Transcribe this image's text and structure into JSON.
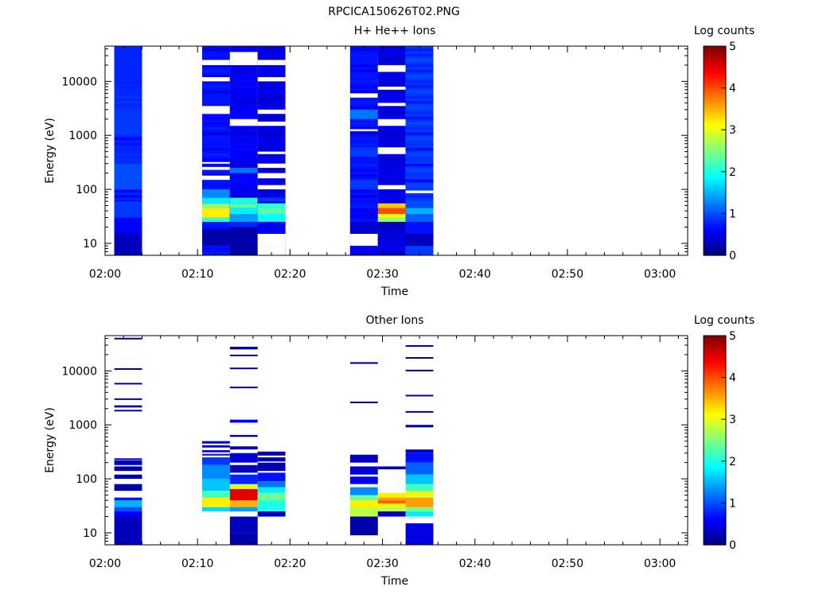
{
  "figure_title": "RPCICA150626T02.PNG",
  "colorbar": {
    "label": "Log counts",
    "ticks": [
      "0",
      "1",
      "2",
      "3",
      "4",
      "5"
    ],
    "range": [
      0,
      5
    ]
  },
  "chart_data": [
    {
      "type": "heatmap",
      "title": "H+ He++ Ions",
      "xlabel": "Time",
      "ylabel": "Energy (eV)",
      "y_scale": "log",
      "ylim": [
        6,
        45000
      ],
      "xlim": [
        "02:00",
        "03:03"
      ],
      "x_ticks": [
        "02:00",
        "02:10",
        "02:20",
        "02:30",
        "02:40",
        "02:50",
        "03:00"
      ],
      "y_ticks": [
        "10",
        "100",
        "1000",
        "10000"
      ],
      "columns": [
        {
          "start": "02:01",
          "end": "02:04",
          "background": 0.8,
          "bands": [
            [
              6,
              15,
              0.3
            ],
            [
              15,
              30,
              0.6
            ],
            [
              30,
              60,
              0.9
            ],
            [
              100,
              300,
              1.0
            ],
            [
              1000,
              3000,
              0.9
            ],
            [
              10000,
              45000,
              0.8
            ]
          ]
        },
        {
          "start": "02:10.5",
          "end": "02:13.5",
          "background": 0.7,
          "bands": [
            [
              9,
              18,
              0.2
            ],
            [
              25,
              30,
              2.1
            ],
            [
              30,
              45,
              3.2
            ],
            [
              45,
              55,
              2.6
            ],
            [
              55,
              70,
              1.8
            ],
            [
              70,
              100,
              1.3
            ]
          ],
          "gaps": [
            150,
            180,
            230,
            260,
            300,
            320,
            2500,
            3500,
            10000,
            12000,
            20000,
            25000,
            30000
          ]
        },
        {
          "start": "02:13.5",
          "end": "02:16.5",
          "background": 0.6,
          "bands": [
            [
              6,
              20,
              0.2
            ],
            [
              20,
              25,
              0.8
            ],
            [
              25,
              35,
              1.4
            ],
            [
              35,
              45,
              1.8
            ],
            [
              45,
              55,
              2.3
            ],
            [
              55,
              70,
              2.0
            ],
            [
              200,
              250,
              1.2
            ]
          ],
          "gaps": [
            1500,
            2000,
            20000,
            35000
          ]
        },
        {
          "start": "02:16.5",
          "end": "02:19.5",
          "background": 0.5,
          "bands": [
            [
              6,
              9,
              0.2
            ],
            [
              15,
              25,
              0.6
            ],
            [
              25,
              35,
              1.9
            ],
            [
              35,
              45,
              2.3
            ],
            [
              45,
              55,
              2.1
            ],
            [
              60,
              70,
              0.9
            ]
          ],
          "gaps": [
            6,
            9,
            9,
            15,
            100,
            120,
            160,
            200,
            250,
            300,
            450,
            500,
            1500,
            1800,
            2500,
            3000,
            10000,
            12000,
            20000,
            25000,
            30000
          ]
        },
        {
          "start": "02:26.5",
          "end": "02:29.5",
          "background": 0.7,
          "bands": [
            [
              6,
              9,
              0.6
            ],
            [
              15,
              25,
              0.4
            ],
            [
              30,
              45,
              0.6
            ],
            [
              100,
              150,
              0.9
            ],
            [
              400,
              600,
              0.9
            ],
            [
              2000,
              3000,
              1.2
            ]
          ],
          "gaps": [
            9,
            15,
            1200,
            1300,
            5000,
            6000
          ]
        },
        {
          "start": "02:29.5",
          "end": "02:32.5",
          "background": 0.5,
          "bands": [
            [
              18,
              25,
              0.3
            ],
            [
              25,
              30,
              2.6
            ],
            [
              30,
              35,
              3.1
            ],
            [
              35,
              45,
              4.0
            ],
            [
              45,
              55,
              3.4
            ]
          ],
          "gaps": [
            450,
            600,
            100,
            120,
            1500,
            2000,
            3500,
            4000,
            7000,
            8000,
            15000,
            20000
          ]
        },
        {
          "start": "02:32.5",
          "end": "02:35.5",
          "background": 0.9,
          "bands": [
            [
              9,
              15,
              0.3
            ],
            [
              15,
              25,
              0.7
            ],
            [
              25,
              35,
              1.1
            ],
            [
              35,
              45,
              1.5
            ],
            [
              45,
              60,
              1.0
            ],
            [
              70,
              80,
              0.8
            ]
          ],
          "gaps": [
            85,
            95
          ]
        }
      ]
    },
    {
      "type": "heatmap",
      "title": "Other Ions",
      "xlabel": "Time",
      "ylabel": "Energy (eV)",
      "y_scale": "log",
      "ylim": [
        6,
        45000
      ],
      "xlim": [
        "02:00",
        "03:03"
      ],
      "x_ticks": [
        "02:00",
        "02:10",
        "02:20",
        "02:30",
        "02:40",
        "02:50",
        "03:00"
      ],
      "y_ticks": [
        "10",
        "100",
        "1000",
        "10000"
      ],
      "columns": [
        {
          "start": "02:01",
          "end": "02:04",
          "bands": [
            [
              6,
              20,
              0.3
            ],
            [
              20,
              25,
              0.6
            ],
            [
              25,
              30,
              1.0
            ],
            [
              30,
              40,
              1.5
            ],
            [
              40,
              45,
              0.7
            ],
            [
              60,
              80,
              0.2
            ],
            [
              100,
              120,
              0.2
            ],
            [
              140,
              170,
              0.2
            ],
            [
              180,
              220,
              0.3
            ],
            [
              230,
              240,
              0.3
            ],
            [
              1800,
              1900,
              0.2
            ],
            [
              2100,
              2300,
              0.2
            ],
            [
              2900,
              3100,
              0.2
            ],
            [
              5700,
              6000,
              0.2
            ],
            [
              10800,
              11200,
              0.2
            ],
            [
              39000,
              41000,
              0.2
            ]
          ]
        },
        {
          "start": "02:10.5",
          "end": "02:13.5",
          "bands": [
            [
              25,
              30,
              1.7
            ],
            [
              30,
              45,
              3.2
            ],
            [
              45,
              60,
              2.2
            ],
            [
              60,
              100,
              1.6
            ],
            [
              100,
              180,
              1.3
            ],
            [
              180,
              250,
              0.9
            ],
            [
              270,
              290,
              0.7
            ],
            [
              310,
              340,
              0.6
            ],
            [
              380,
              420,
              0.5
            ],
            [
              450,
              500,
              0.4
            ]
          ]
        },
        {
          "start": "02:13.5",
          "end": "02:16.5",
          "bands": [
            [
              6,
              10,
              0.2
            ],
            [
              10,
              20,
              0.3
            ],
            [
              25,
              30,
              1.4
            ],
            [
              30,
              40,
              3.5
            ],
            [
              40,
              65,
              4.5
            ],
            [
              65,
              80,
              3.0
            ],
            [
              80,
              120,
              0.8
            ],
            [
              130,
              180,
              0.3
            ],
            [
              200,
              300,
              0.4
            ],
            [
              350,
              400,
              0.3
            ],
            [
              600,
              650,
              0.2
            ],
            [
              1100,
              1250,
              0.6
            ],
            [
              4800,
              5100,
              0.2
            ],
            [
              11000,
              11500,
              0.2
            ],
            [
              19000,
              20000,
              0.2
            ],
            [
              25000,
              28000,
              0.2
            ]
          ]
        },
        {
          "start": "02:16.5",
          "end": "02:19.5",
          "bands": [
            [
              20,
              25,
              0.3
            ],
            [
              25,
              40,
              2.0
            ],
            [
              40,
              55,
              2.4
            ],
            [
              55,
              70,
              1.8
            ],
            [
              70,
              90,
              1.2
            ],
            [
              90,
              130,
              0.7
            ],
            [
              140,
              200,
              0.2
            ],
            [
              210,
              250,
              0.3
            ],
            [
              270,
              320,
              0.3
            ]
          ]
        },
        {
          "start": "02:26.5",
          "end": "02:29.5",
          "bands": [
            [
              9,
              20,
              0.2
            ],
            [
              20,
              30,
              2.8
            ],
            [
              30,
              40,
              3.2
            ],
            [
              40,
              50,
              2.4
            ],
            [
              50,
              70,
              1.3
            ],
            [
              80,
              110,
              0.6
            ],
            [
              120,
              170,
              0.4
            ],
            [
              200,
              280,
              0.3
            ],
            [
              2600,
              2700,
              0.2
            ],
            [
              13500,
              14500,
              0.2
            ]
          ]
        },
        {
          "start": "02:29.5",
          "end": "02:32.5",
          "bands": [
            [
              20,
              25,
              0.3
            ],
            [
              25,
              30,
              2.8
            ],
            [
              30,
              35,
              3.2
            ],
            [
              35,
              40,
              3.9
            ],
            [
              40,
              45,
              3.6
            ],
            [
              45,
              55,
              3.2
            ],
            [
              150,
              170,
              0.2
            ]
          ]
        },
        {
          "start": "02:32.5",
          "end": "02:35.5",
          "bands": [
            [
              6,
              15,
              0.5
            ],
            [
              20,
              25,
              1.8
            ],
            [
              25,
              30,
              2.5
            ],
            [
              30,
              45,
              3.6
            ],
            [
              45,
              60,
              3.0
            ],
            [
              60,
              80,
              2.2
            ],
            [
              80,
              120,
              1.6
            ],
            [
              120,
              200,
              1.1
            ],
            [
              200,
              300,
              0.7
            ],
            [
              300,
              350,
              0.4
            ],
            [
              900,
              1000,
              0.2
            ],
            [
              1700,
              1800,
              0.2
            ],
            [
              3400,
              3600,
              0.2
            ],
            [
              10000,
              10500,
              0.2
            ],
            [
              17000,
              18000,
              0.2
            ],
            [
              28000,
              30000,
              0.2
            ]
          ]
        }
      ]
    }
  ]
}
